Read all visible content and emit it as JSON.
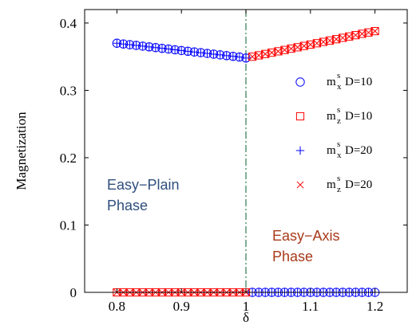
{
  "chart_data": {
    "type": "scatter",
    "xlabel": "δ",
    "ylabel": "Magnetization",
    "xlim": [
      0.75,
      1.25
    ],
    "ylim": [
      0,
      0.42
    ],
    "xticks": [
      0.8,
      0.9,
      1,
      1.1,
      1.2
    ],
    "xtick_labels": [
      "0.8",
      "0.9",
      "1",
      "1.1",
      "1.2"
    ],
    "yticks": [
      0,
      0.1,
      0.2,
      0.3,
      0.4
    ],
    "ytick_labels": [
      "0",
      "0.1",
      "0.2",
      "0.3",
      "0.4"
    ],
    "x": [
      0.8,
      0.81,
      0.82,
      0.83,
      0.84,
      0.85,
      0.86,
      0.87,
      0.88,
      0.89,
      0.9,
      0.91,
      0.92,
      0.93,
      0.94,
      0.95,
      0.96,
      0.97,
      0.98,
      0.99,
      1.0,
      1.01,
      1.02,
      1.03,
      1.04,
      1.05,
      1.06,
      1.07,
      1.08,
      1.09,
      1.1,
      1.11,
      1.12,
      1.13,
      1.14,
      1.15,
      1.16,
      1.17,
      1.18,
      1.19,
      1.2
    ],
    "series": [
      {
        "name": "m_x^s D=10",
        "marker": "circle",
        "color": "#0000ff",
        "values": [
          0.37,
          0.3689,
          0.3678,
          0.3668,
          0.3657,
          0.3646,
          0.3635,
          0.3624,
          0.3614,
          0.3603,
          0.3592,
          0.3581,
          0.357,
          0.356,
          0.3549,
          0.3538,
          0.3527,
          0.3516,
          0.3506,
          0.3495,
          0.348,
          0,
          0,
          0,
          0,
          0,
          0,
          0,
          0,
          0,
          0,
          0,
          0,
          0,
          0,
          0,
          0,
          0,
          0,
          0,
          0
        ]
      },
      {
        "name": "m_z^s D=10",
        "marker": "square",
        "color": "#ff0000",
        "values": [
          0,
          0,
          0,
          0,
          0,
          0,
          0,
          0,
          0,
          0,
          0,
          0,
          0,
          0,
          0,
          0,
          0,
          0,
          0,
          0,
          0,
          0.35,
          0.352,
          0.354,
          0.356,
          0.358,
          0.36,
          0.362,
          0.364,
          0.366,
          0.368,
          0.37,
          0.372,
          0.374,
          0.376,
          0.378,
          0.38,
          0.382,
          0.384,
          0.386,
          0.388
        ]
      },
      {
        "name": "m_x^s D=20",
        "marker": "plus",
        "color": "#0000ff",
        "values": [
          0.37,
          0.3689,
          0.3678,
          0.3668,
          0.3657,
          0.3646,
          0.3635,
          0.3624,
          0.3614,
          0.3603,
          0.3592,
          0.3581,
          0.357,
          0.356,
          0.3549,
          0.3538,
          0.3527,
          0.3516,
          0.3506,
          0.3495,
          0.348,
          0,
          0,
          0,
          0,
          0,
          0,
          0,
          0,
          0,
          0,
          0,
          0,
          0,
          0,
          0,
          0,
          0,
          0,
          0,
          0
        ]
      },
      {
        "name": "m_z^s D=20",
        "marker": "x",
        "color": "#ff0000",
        "values": [
          0,
          0,
          0,
          0,
          0,
          0,
          0,
          0,
          0,
          0,
          0,
          0,
          0,
          0,
          0,
          0,
          0,
          0,
          0,
          0,
          0,
          0.35,
          0.352,
          0.354,
          0.356,
          0.358,
          0.36,
          0.362,
          0.364,
          0.366,
          0.368,
          0.37,
          0.372,
          0.374,
          0.376,
          0.378,
          0.38,
          0.382,
          0.384,
          0.386,
          0.388
        ]
      }
    ],
    "vertical_line": {
      "x": 1.0,
      "style": "dash-dot",
      "color": "#2e7d4f"
    },
    "legend": {
      "position": "right",
      "entries": [
        {
          "base": "m",
          "sup": "s",
          "sub": "x",
          "text": "D=10",
          "marker": "circle",
          "color": "#0000ff"
        },
        {
          "base": "m",
          "sup": "s",
          "sub": "z",
          "text": "D=10",
          "marker": "square",
          "color": "#ff0000"
        },
        {
          "base": "m",
          "sup": "s",
          "sub": "x",
          "text": "D=20",
          "marker": "plus",
          "color": "#0000ff"
        },
        {
          "base": "m",
          "sup": "s",
          "sub": "z",
          "text": "D=20",
          "marker": "x",
          "color": "#ff0000"
        }
      ]
    },
    "annotations": [
      {
        "lines": [
          "Easy−Plain",
          "Phase"
        ],
        "color": "#2f4f7f"
      },
      {
        "lines": [
          "Easy−Axis",
          "Phase"
        ],
        "color": "#a83a1a"
      }
    ]
  }
}
